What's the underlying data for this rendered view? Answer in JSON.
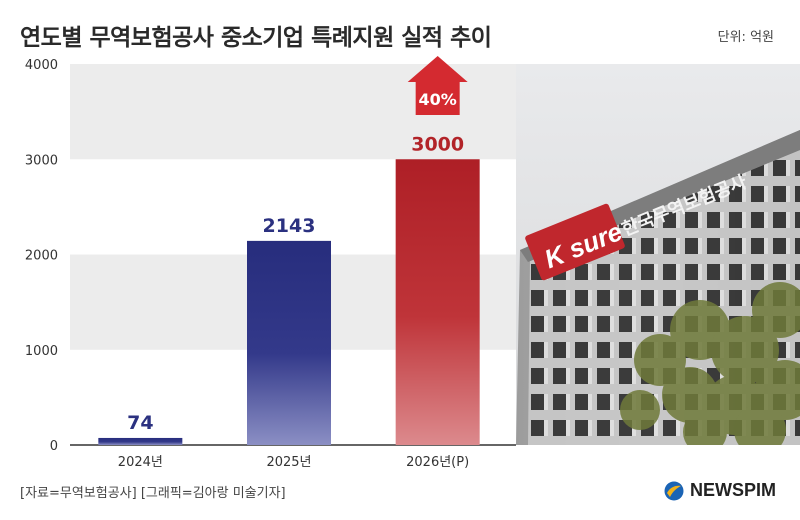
{
  "header": {
    "title": "연도별 무역보험공사 중소기업 특례지원 실적 추이",
    "unit": "단위: 억원"
  },
  "footer": {
    "source": "[자료=무역보험공사] [그래픽=김아랑 미술기자]",
    "brand": "NEWSPIM"
  },
  "photo": {
    "sign_text": "한국무역보험공사",
    "logo_text": "K sure"
  },
  "chart_data": {
    "type": "bar",
    "categories": [
      "2024년",
      "2025년",
      "2026년(P)"
    ],
    "values": [
      74,
      2143,
      3000
    ],
    "data_labels": [
      "74",
      "2143",
      "3000"
    ],
    "ylim": [
      0,
      4000
    ],
    "yticks": [
      0,
      1000,
      2000,
      3000,
      4000
    ],
    "grid_bands": true,
    "annotation": "40%",
    "colors": {
      "bar_default": "#2b3180",
      "bar_highlight": "#b22328",
      "label_default": "#2b3180",
      "label_highlight": "#b22328",
      "arrow": "#d42a30",
      "band": "#ececec"
    }
  }
}
